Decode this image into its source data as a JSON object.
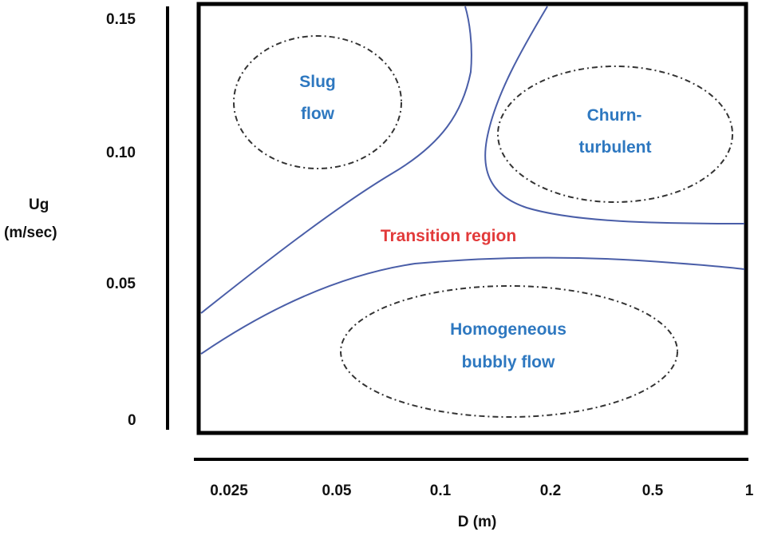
{
  "colors": {
    "boundary": "#4a5ea8",
    "region_label": "#2e78c0",
    "transition_label": "#e23a3a",
    "axis": "#000000"
  },
  "y_axis": {
    "title_line1": "Ug",
    "title_line2": "(m/sec)",
    "ticks": [
      "0.15",
      "0.10",
      "0.05",
      "0"
    ]
  },
  "x_axis": {
    "title": "D (m)",
    "ticks": [
      "0.025",
      "0.05",
      "0.1",
      "0.2",
      "0.5",
      "1"
    ]
  },
  "regions": {
    "slug": {
      "line1": "Slug",
      "line2": "flow"
    },
    "churn": {
      "line1": "Churn-",
      "line2": "turbulent"
    },
    "transition": {
      "label": "Transition region"
    },
    "bubbly": {
      "line1": "Homogeneous",
      "line2": "bubbly flow"
    }
  }
}
